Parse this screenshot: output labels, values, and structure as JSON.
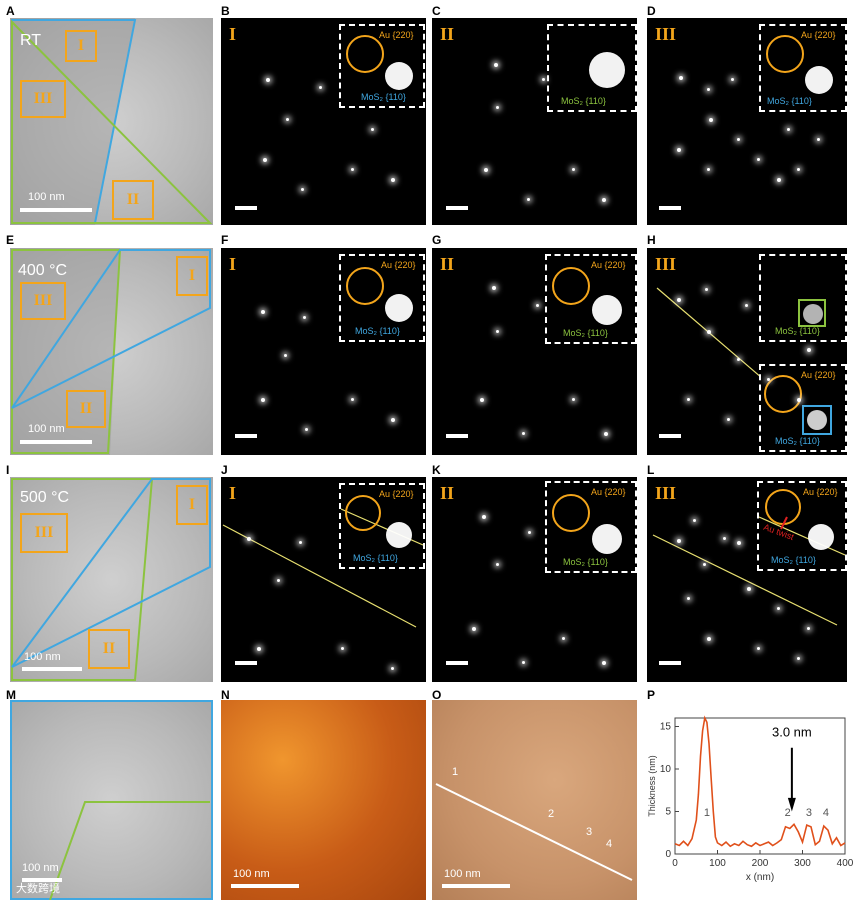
{
  "panel_labels": [
    "A",
    "B",
    "C",
    "D",
    "E",
    "F",
    "G",
    "H",
    "I",
    "J",
    "K",
    "L",
    "M",
    "N",
    "O",
    "P"
  ],
  "roman": {
    "I": "I",
    "II": "II",
    "III": "III"
  },
  "temps": {
    "rt": "RT",
    "t400": "400 °C",
    "t500": "500 °C"
  },
  "scale": {
    "nm100": "100 nm"
  },
  "labels": {
    "au": "Au {220}",
    "mos": "MoS₂ {110}",
    "twist": "Au twist"
  },
  "afm_marks": [
    "1",
    "2",
    "3",
    "4"
  ],
  "chart_data": {
    "type": "line",
    "title": "",
    "xlabel": "x (nm)",
    "ylabel": "Thickness (nm)",
    "xlim": [
      0,
      400
    ],
    "ylim": [
      0,
      16
    ],
    "xticks": [
      0,
      100,
      200,
      300,
      400
    ],
    "yticks": [
      0,
      5,
      10,
      15
    ],
    "annotation": "3.0 nm",
    "peak_labels": [
      "1",
      "2",
      "3",
      "4"
    ],
    "x": [
      0,
      10,
      20,
      30,
      40,
      50,
      55,
      60,
      65,
      70,
      75,
      80,
      85,
      90,
      95,
      100,
      110,
      120,
      130,
      140,
      150,
      160,
      170,
      180,
      190,
      200,
      210,
      220,
      230,
      240,
      250,
      260,
      270,
      280,
      290,
      300,
      310,
      320,
      330,
      340,
      350,
      360,
      370,
      380,
      390,
      400
    ],
    "y": [
      1.2,
      1.0,
      1.5,
      1.0,
      1.8,
      4.0,
      7.0,
      11.5,
      14.5,
      16.0,
      15.5,
      13.0,
      9.0,
      5.0,
      2.0,
      1.3,
      1.0,
      1.4,
      0.9,
      1.2,
      1.0,
      1.5,
      1.1,
      0.9,
      1.3,
      1.0,
      1.2,
      1.4,
      1.0,
      1.3,
      1.7,
      3.2,
      3.0,
      3.5,
      2.6,
      1.4,
      3.4,
      3.2,
      1.1,
      1.5,
      3.3,
      2.8,
      1.2,
      1.9,
      1.0,
      1.3
    ]
  },
  "colors": {
    "au": "#f3a51b",
    "mos_blue": "#40a7e0",
    "mos_green": "#8cc33f",
    "line": "#e0501b"
  },
  "watermark": "大数跨境"
}
